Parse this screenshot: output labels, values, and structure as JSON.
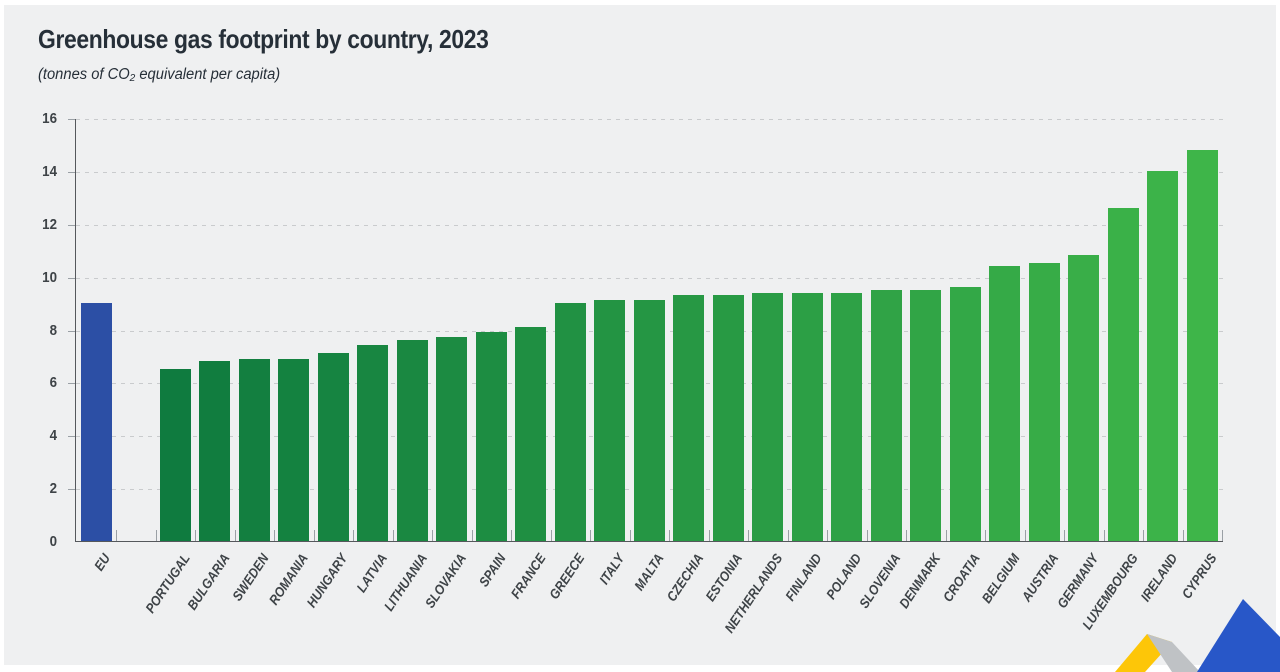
{
  "chart_data": {
    "type": "bar",
    "title": "Greenhouse gas footprint by country, 2023",
    "subtitle": "(tonnes of CO₂ equivalent per capita)",
    "categories": [
      "EU",
      "PORTUGAL",
      "BULGARIA",
      "SWEDEN",
      "ROMANIA",
      "HUNGARY",
      "LATVIA",
      "LITHUANIA",
      "SLOVAKIA",
      "SPAIN",
      "FRANCE",
      "GREECE",
      "ITALY",
      "MALTA",
      "CZECHIA",
      "ESTONIA",
      "NETHERLANDS",
      "FINLAND",
      "POLAND",
      "SLOVENIA",
      "DENMARK",
      "CROATIA",
      "BELGIUM",
      "AUSTRIA",
      "GERMANY",
      "LUXEMBOURG",
      "IRELAND",
      "CYPRUS"
    ],
    "values": [
      9.0,
      6.5,
      6.8,
      6.9,
      6.9,
      7.1,
      7.4,
      7.6,
      7.7,
      7.9,
      8.1,
      9.0,
      9.1,
      9.1,
      9.3,
      9.3,
      9.4,
      9.4,
      9.4,
      9.5,
      9.5,
      9.6,
      10.4,
      10.5,
      10.8,
      12.6,
      14.0,
      14.8
    ],
    "ylim": [
      0,
      16
    ],
    "yticks": [
      0,
      2,
      4,
      6,
      8,
      10,
      12,
      14,
      16
    ],
    "xlabel": "",
    "ylabel": "",
    "grid": "horizontal-dashed",
    "legend": "none",
    "gap_after_first_bar": true,
    "colors": {
      "eu_bar": "#2c4fa5",
      "gradient_start": "#0f7b3f",
      "gradient_end": "#3eb549",
      "axis": "#55585c",
      "grid": "#c9cbcd",
      "tick": "#9aa0a5",
      "title_text": "#262f38",
      "axis_label_text": "#3e4347",
      "background": "#eff0f1"
    }
  },
  "logo": {
    "name": "statistics-ribbon-logo",
    "colors": {
      "yellow": "#fdc608",
      "blue": "#2857c8",
      "fold": "#bfc2c5"
    }
  }
}
